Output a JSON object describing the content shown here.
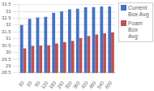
{
  "chart_data": {
    "type": "bar",
    "categories": [
      "30",
      "60",
      "90",
      "120",
      "180",
      "240",
      "300",
      "360",
      "420",
      "480",
      "540",
      "600"
    ],
    "series": [
      {
        "name": "Current\nBox Avg",
        "color": "#4472C4",
        "values": [
          32.01,
          32.45,
          32.55,
          32.6,
          32.9,
          33.0,
          33.15,
          33.2,
          33.3,
          33.32,
          33.35,
          33.35
        ]
      },
      {
        "name": "Foam Box\nAvg",
        "color": "#C0504D",
        "values": [
          30.3,
          30.48,
          30.5,
          30.52,
          30.65,
          30.75,
          30.85,
          31.05,
          31.2,
          31.3,
          31.4,
          31.45
        ]
      }
    ],
    "ylim": [
      28.5,
      33.5
    ],
    "yticks": [
      28.5,
      29,
      29.5,
      30,
      30.5,
      31,
      31.5,
      32,
      32.5,
      33,
      33.5
    ],
    "grid": true,
    "legend": "right"
  }
}
